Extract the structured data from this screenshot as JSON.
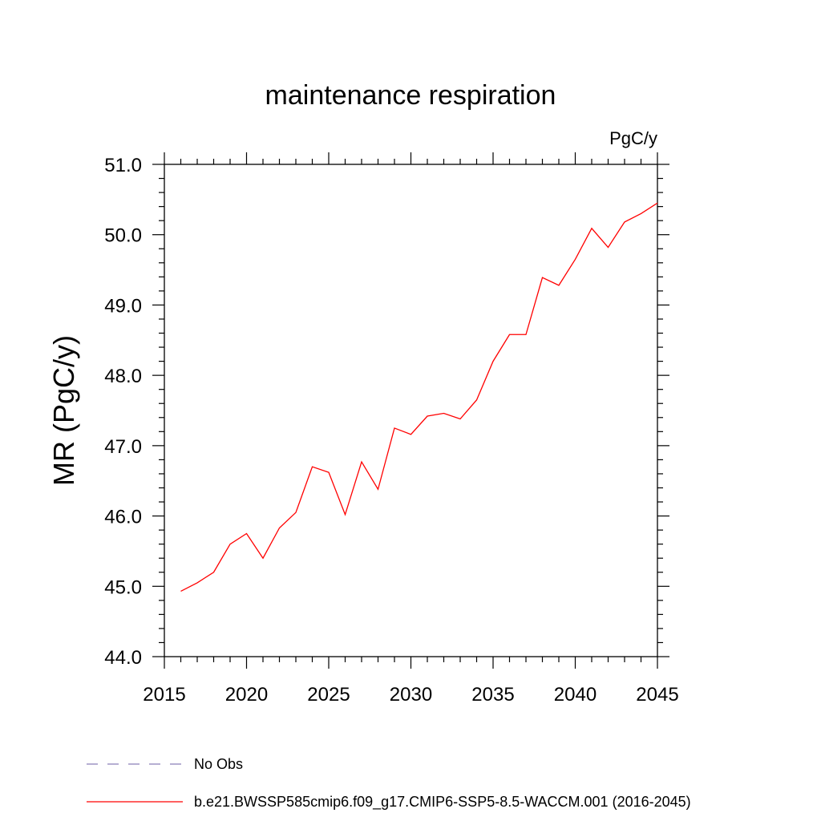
{
  "chart_data": {
    "type": "line",
    "title": "maintenance respiration",
    "units_label": "PgC/y",
    "ylabel": "MR  (PgC/y)",
    "xlabel": "",
    "xlim": [
      2015,
      2045
    ],
    "ylim": [
      44.0,
      51.0
    ],
    "x_ticks": [
      2015,
      2020,
      2025,
      2030,
      2035,
      2040,
      2045
    ],
    "x_tick_labels": [
      "2015",
      "2020",
      "2025",
      "2030",
      "2035",
      "2040",
      "2045"
    ],
    "y_ticks": [
      44.0,
      45.0,
      46.0,
      47.0,
      48.0,
      49.0,
      50.0,
      51.0
    ],
    "y_tick_labels": [
      "44.0",
      "45.0",
      "46.0",
      "47.0",
      "48.0",
      "49.0",
      "50.0",
      "51.0"
    ],
    "grid": false,
    "legend_position": "bottom-left",
    "series": [
      {
        "name": "b.e21.BWSSP585cmip6.f09_g17.CMIP6-SSP5-8.5-WACCM.001 (2016-2045)",
        "color": "#ff0000",
        "style": "solid",
        "x": [
          2016,
          2017,
          2018,
          2019,
          2020,
          2021,
          2022,
          2023,
          2024,
          2025,
          2026,
          2027,
          2028,
          2029,
          2030,
          2031,
          2032,
          2033,
          2034,
          2035,
          2036,
          2037,
          2038,
          2039,
          2040,
          2041,
          2042,
          2043,
          2044,
          2045
        ],
        "values": [
          44.93,
          45.05,
          45.2,
          45.6,
          45.75,
          45.4,
          45.83,
          46.05,
          46.7,
          46.62,
          46.02,
          46.77,
          46.38,
          47.25,
          47.16,
          47.42,
          47.46,
          47.38,
          47.65,
          48.2,
          48.58,
          48.58,
          49.39,
          49.28,
          49.65,
          50.09,
          49.82,
          50.18,
          50.3,
          50.45
        ]
      },
      {
        "name": "No Obs",
        "color": "#8a7fb8",
        "style": "dashed",
        "x": [],
        "values": []
      }
    ],
    "legend": [
      {
        "label": "No Obs",
        "color": "#8a7fb8",
        "style": "dashed"
      },
      {
        "label": "b.e21.BWSSP585cmip6.f09_g17.CMIP6-SSP5-8.5-WACCM.001 (2016-2045)",
        "color": "#ff0000",
        "style": "solid"
      }
    ]
  }
}
